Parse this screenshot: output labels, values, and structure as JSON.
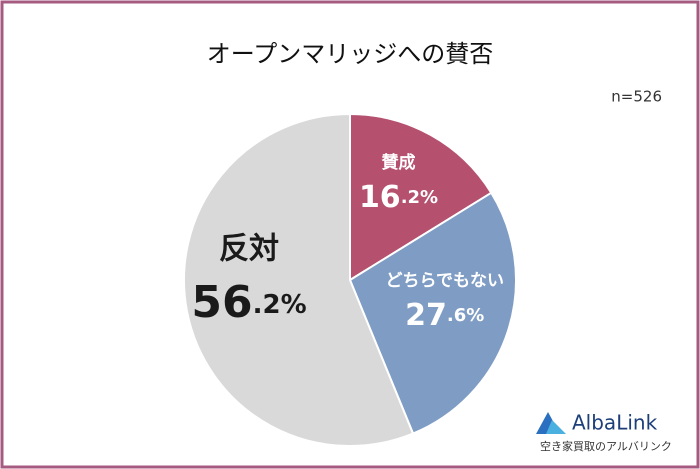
{
  "chart_data": {
    "type": "pie",
    "title": "オープンマリッジへの賛否",
    "subtitle": "n=526",
    "categories": [
      "賛成",
      "どちらでもない",
      "反対"
    ],
    "values": [
      16.2,
      27.6,
      56.2
    ],
    "value_labels": [
      "16.2%",
      "27.6%",
      "56.2%"
    ],
    "colors": [
      "#b5506f",
      "#7f9dc4",
      "#d9d9d9"
    ],
    "label_colors": [
      "#ffffff",
      "#ffffff",
      "#1a1a1a"
    ]
  },
  "logo": {
    "name": "AlbaLink",
    "tagline": "空き家買取のアルバリンク"
  }
}
